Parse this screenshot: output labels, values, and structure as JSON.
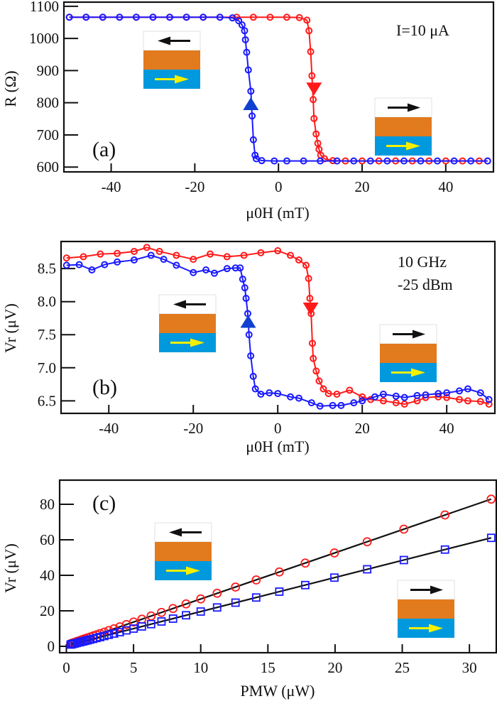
{
  "colors": {
    "red": "#ff1a1a",
    "blue": "#1a1aff",
    "inset_orange": "#e27a1e",
    "inset_blue": "#0099dd",
    "inset_yellow": "#f5f000",
    "inset_black": "#111111"
  },
  "chart_data": [
    {
      "type": "scatter",
      "panel_label": "(a)",
      "annotation": "I=10 μA",
      "xlabel": "μ0H (mT)",
      "ylabel": "R (Ω)",
      "xlim": [
        -51.3,
        51.4
      ],
      "ylim": [
        585,
        1113
      ],
      "xticks": [
        -40,
        -20,
        0,
        20,
        40
      ],
      "xtick_labels": [
        "-40",
        "-20",
        "0",
        "20",
        "40"
      ],
      "yticks": [
        600,
        700,
        800,
        900,
        1000,
        1100
      ],
      "ytick_labels": [
        "600",
        "700",
        "800",
        "900",
        "1000",
        "1100"
      ],
      "grid": false,
      "insets": [
        "free-layer-left-antiparallel",
        "free-layer-right-parallel"
      ],
      "series": [
        {
          "color": "red",
          "marker": "circle",
          "sweep_arrow": "down",
          "arrow_at": [
            8.5,
            845
          ],
          "points": [
            [
              -50,
              1066
            ],
            [
              -46,
              1066
            ],
            [
              -42,
              1066
            ],
            [
              -38,
              1066
            ],
            [
              -34,
              1066
            ],
            [
              -30,
              1066
            ],
            [
              -26,
              1066
            ],
            [
              -22,
              1066
            ],
            [
              -18,
              1066
            ],
            [
              -14,
              1066
            ],
            [
              -10,
              1066
            ],
            [
              -6,
              1066
            ],
            [
              -2,
              1066
            ],
            [
              2,
              1066
            ],
            [
              5,
              1065
            ],
            [
              6.8,
              1057
            ],
            [
              7.3,
              1024
            ],
            [
              7.7,
              959
            ],
            [
              8.0,
              884
            ],
            [
              8.3,
              810
            ],
            [
              8.5,
              751
            ],
            [
              9.0,
              703
            ],
            [
              9.4,
              674
            ],
            [
              9.7,
              655
            ],
            [
              10.1,
              637
            ],
            [
              11,
              626
            ],
            [
              13,
              620
            ],
            [
              16,
              619
            ],
            [
              20,
              619
            ],
            [
              24,
              619
            ],
            [
              28,
              619
            ],
            [
              32,
              619
            ],
            [
              36,
              619
            ],
            [
              40,
              619
            ],
            [
              44,
              619
            ],
            [
              48,
              619
            ],
            [
              50,
              619
            ]
          ]
        },
        {
          "color": "blue",
          "marker": "circle",
          "sweep_arrow": "up",
          "arrow_at": [
            -6.6,
            795
          ],
          "points": [
            [
              -50,
              1066
            ],
            [
              -46,
              1066
            ],
            [
              -42,
              1066
            ],
            [
              -38,
              1066
            ],
            [
              -34,
              1066
            ],
            [
              -30,
              1066
            ],
            [
              -26,
              1066
            ],
            [
              -22,
              1066
            ],
            [
              -18,
              1066
            ],
            [
              -14,
              1066
            ],
            [
              -11,
              1064
            ],
            [
              -9.5,
              1055
            ],
            [
              -8.7,
              1042
            ],
            [
              -8.1,
              1024
            ],
            [
              -7.9,
              996
            ],
            [
              -7.6,
              957
            ],
            [
              -7.2,
              902
            ],
            [
              -6.6,
              836
            ],
            [
              -6.3,
              759
            ],
            [
              -6.0,
              685
            ],
            [
              -5.6,
              637
            ],
            [
              -5.3,
              626
            ],
            [
              -4,
              620
            ],
            [
              -1,
              619
            ],
            [
              2,
              619
            ],
            [
              6,
              619
            ],
            [
              10,
              619
            ],
            [
              14,
              619
            ],
            [
              18,
              619
            ],
            [
              22,
              619
            ],
            [
              26,
              619
            ],
            [
              30,
              619
            ],
            [
              34,
              619
            ],
            [
              38,
              619
            ],
            [
              42,
              619
            ],
            [
              46,
              619
            ],
            [
              50,
              619
            ]
          ]
        }
      ]
    },
    {
      "type": "scatter",
      "panel_label": "(b)",
      "annotation": [
        "10 GHz",
        "-25 dBm"
      ],
      "xlabel": "μ0H (mT)",
      "ylabel": "Vr (μV)",
      "xlim": [
        -51.3,
        51.4
      ],
      "ylim": [
        6.31,
        8.91
      ],
      "xticks": [
        -40,
        -20,
        0,
        20,
        40
      ],
      "xtick_labels": [
        "-40",
        "-20",
        "0",
        "20",
        "40"
      ],
      "yticks": [
        6.5,
        7.0,
        7.5,
        8.0,
        8.5
      ],
      "ytick_labels": [
        "6.5",
        "7.0",
        "7.5",
        "8.0",
        "8.5"
      ],
      "grid": false,
      "insets": [
        "free-layer-left-antiparallel",
        "free-layer-right-parallel"
      ],
      "series": [
        {
          "color": "red",
          "marker": "circle",
          "sweep_arrow": "down",
          "arrow_at": [
            7.8,
            7.9
          ],
          "points": [
            [
              -50,
              8.66
            ],
            [
              -46,
              8.68
            ],
            [
              -42,
              8.72
            ],
            [
              -38,
              8.73
            ],
            [
              -34,
              8.76
            ],
            [
              -31,
              8.82
            ],
            [
              -28,
              8.76
            ],
            [
              -24,
              8.7
            ],
            [
              -20,
              8.64
            ],
            [
              -16,
              8.72
            ],
            [
              -12,
              8.68
            ],
            [
              -8,
              8.7
            ],
            [
              -4,
              8.74
            ],
            [
              0,
              8.77
            ],
            [
              3,
              8.7
            ],
            [
              5,
              8.63
            ],
            [
              6.7,
              8.55
            ],
            [
              7.3,
              8.35
            ],
            [
              7.6,
              8.05
            ],
            [
              7.9,
              7.82
            ],
            [
              8.2,
              7.37
            ],
            [
              8.4,
              7.14
            ],
            [
              9.1,
              6.95
            ],
            [
              9.8,
              6.8
            ],
            [
              10.8,
              6.68
            ],
            [
              12,
              6.61
            ],
            [
              14,
              6.6
            ],
            [
              17,
              6.66
            ],
            [
              20,
              6.56
            ],
            [
              22,
              6.52
            ],
            [
              25,
              6.5
            ],
            [
              28,
              6.47
            ],
            [
              30,
              6.45
            ],
            [
              33,
              6.5
            ],
            [
              35,
              6.55
            ],
            [
              38,
              6.56
            ],
            [
              40,
              6.55
            ],
            [
              43,
              6.52
            ],
            [
              45,
              6.5
            ],
            [
              48,
              6.49
            ],
            [
              50,
              6.45
            ]
          ]
        },
        {
          "color": "blue",
          "marker": "circle",
          "sweep_arrow": "up",
          "arrow_at": [
            -7.0,
            7.69
          ],
          "points": [
            [
              -50,
              8.55
            ],
            [
              -47,
              8.56
            ],
            [
              -44,
              8.48
            ],
            [
              -41,
              8.56
            ],
            [
              -38,
              8.6
            ],
            [
              -34,
              8.63
            ],
            [
              -30,
              8.7
            ],
            [
              -27,
              8.64
            ],
            [
              -24,
              8.55
            ],
            [
              -20,
              8.44
            ],
            [
              -17,
              8.48
            ],
            [
              -15,
              8.43
            ],
            [
              -12,
              8.5
            ],
            [
              -10,
              8.51
            ],
            [
              -8.9,
              8.51
            ],
            [
              -8.3,
              8.34
            ],
            [
              -7.8,
              8.21
            ],
            [
              -7.5,
              8.05
            ],
            [
              -7.1,
              7.82
            ],
            [
              -6.8,
              7.5
            ],
            [
              -6.4,
              7.18
            ],
            [
              -5.8,
              6.87
            ],
            [
              -5.3,
              6.68
            ],
            [
              -4,
              6.6
            ],
            [
              -2,
              6.62
            ],
            [
              0,
              6.61
            ],
            [
              3,
              6.56
            ],
            [
              5,
              6.54
            ],
            [
              8,
              6.47
            ],
            [
              10,
              6.42
            ],
            [
              13,
              6.43
            ],
            [
              15,
              6.43
            ],
            [
              18,
              6.47
            ],
            [
              20,
              6.5
            ],
            [
              23,
              6.56
            ],
            [
              25,
              6.6
            ],
            [
              28,
              6.57
            ],
            [
              30,
              6.55
            ],
            [
              33,
              6.58
            ],
            [
              35,
              6.59
            ],
            [
              38,
              6.61
            ],
            [
              40,
              6.62
            ],
            [
              43,
              6.65
            ],
            [
              45,
              6.68
            ],
            [
              48,
              6.62
            ],
            [
              50,
              6.52
            ]
          ]
        }
      ]
    },
    {
      "type": "scatter",
      "panel_label": "(c)",
      "xlabel": "PMW (μW)",
      "ylabel": "Vr (μV)",
      "xlim": [
        -0.5,
        32.0
      ],
      "ylim": [
        -3.6,
        93.6
      ],
      "xticks": [
        0,
        5,
        10,
        15,
        20,
        25,
        30
      ],
      "xtick_labels": [
        "0",
        "5",
        "10",
        "15",
        "20",
        "25",
        "30"
      ],
      "yticks": [
        0,
        20,
        40,
        60,
        80
      ],
      "ytick_labels": [
        "0",
        "20",
        "40",
        "60",
        "80"
      ],
      "grid": false,
      "insets": [
        "free-layer-left-antiparallel",
        "free-layer-right-parallel"
      ],
      "x": [
        31.62,
        28.18,
        25.12,
        22.39,
        19.95,
        17.78,
        15.85,
        14.13,
        12.59,
        11.22,
        10.0,
        8.91,
        7.94,
        7.08,
        6.31,
        5.62,
        5.01,
        4.47,
        3.98,
        3.55,
        3.16,
        2.82,
        2.51,
        2.24,
        2.0,
        1.78,
        1.58,
        1.41,
        1.26,
        1.12,
        1.0,
        0.79,
        0.63,
        0.5,
        0.4,
        0.32
      ],
      "series": [
        {
          "color": "red",
          "marker": "circle",
          "values": [
            82.9,
            74.0,
            66.0,
            58.9,
            52.6,
            46.9,
            41.9,
            37.4,
            33.4,
            29.9,
            26.7,
            23.9,
            21.3,
            19.1,
            17.1,
            15.3,
            13.7,
            12.3,
            11.0,
            9.9,
            8.9,
            8.0,
            7.2,
            6.5,
            5.9,
            5.3,
            4.8,
            4.4,
            4.0,
            3.6,
            3.3,
            2.8,
            2.3,
            2.0,
            1.7,
            1.5
          ],
          "fit_line": [
            [
              0.32,
              1.5
            ],
            [
              31.62,
              82.9
            ]
          ]
        },
        {
          "color": "blue",
          "marker": "square",
          "values": [
            61.1,
            54.5,
            48.6,
            43.4,
            38.7,
            34.5,
            30.8,
            27.5,
            24.6,
            21.9,
            19.6,
            17.5,
            15.6,
            14.0,
            12.5,
            11.2,
            10.0,
            9.0,
            8.0,
            7.2,
            6.5,
            5.8,
            5.2,
            4.7,
            4.2,
            3.8,
            3.4,
            3.1,
            2.8,
            2.6,
            2.3,
            1.9,
            1.6,
            1.4,
            1.2,
            1.0
          ],
          "fit_line": [
            [
              0.32,
              1.0
            ],
            [
              31.62,
              61.1
            ]
          ]
        }
      ]
    }
  ]
}
